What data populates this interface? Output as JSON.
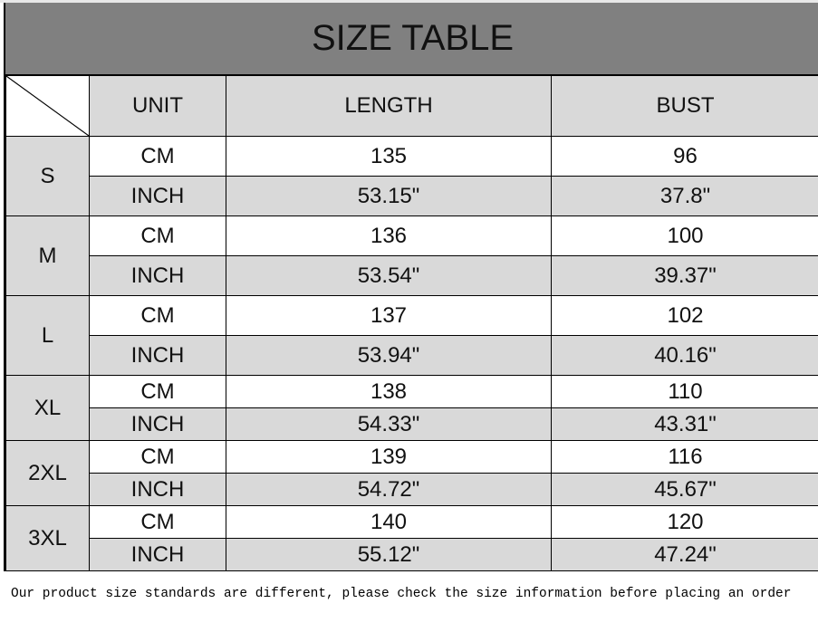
{
  "title": "SIZE TABLE",
  "headers": {
    "unit": "UNIT",
    "length": "LENGTH",
    "bust": "BUST"
  },
  "rows": [
    {
      "size": "S",
      "cm": {
        "unit": "CM",
        "length": "135",
        "bust": "96"
      },
      "inch": {
        "unit": "INCH",
        "length": "53.15\"",
        "bust": "37.8\""
      }
    },
    {
      "size": "M",
      "cm": {
        "unit": "CM",
        "length": "136",
        "bust": "100"
      },
      "inch": {
        "unit": "INCH",
        "length": "53.54\"",
        "bust": "39.37\""
      }
    },
    {
      "size": "L",
      "cm": {
        "unit": "CM",
        "length": "137",
        "bust": "102"
      },
      "inch": {
        "unit": "INCH",
        "length": "53.94\"",
        "bust": "40.16\""
      }
    },
    {
      "size": "XL",
      "cm": {
        "unit": "CM",
        "length": "138",
        "bust": "110"
      },
      "inch": {
        "unit": "INCH",
        "length": "54.33\"",
        "bust": "43.31\""
      }
    },
    {
      "size": "2XL",
      "cm": {
        "unit": "CM",
        "length": "139",
        "bust": "116"
      },
      "inch": {
        "unit": "INCH",
        "length": "54.72\"",
        "bust": "45.67\""
      }
    },
    {
      "size": "3XL",
      "cm": {
        "unit": "CM",
        "length": "140",
        "bust": "120"
      },
      "inch": {
        "unit": "INCH",
        "length": "55.12\"",
        "bust": "47.24\""
      }
    }
  ],
  "note": "Our product size standards are different, please check the size information before placing an order",
  "colors": {
    "title_bg": "#808080",
    "shade": "#d9d9d9"
  }
}
